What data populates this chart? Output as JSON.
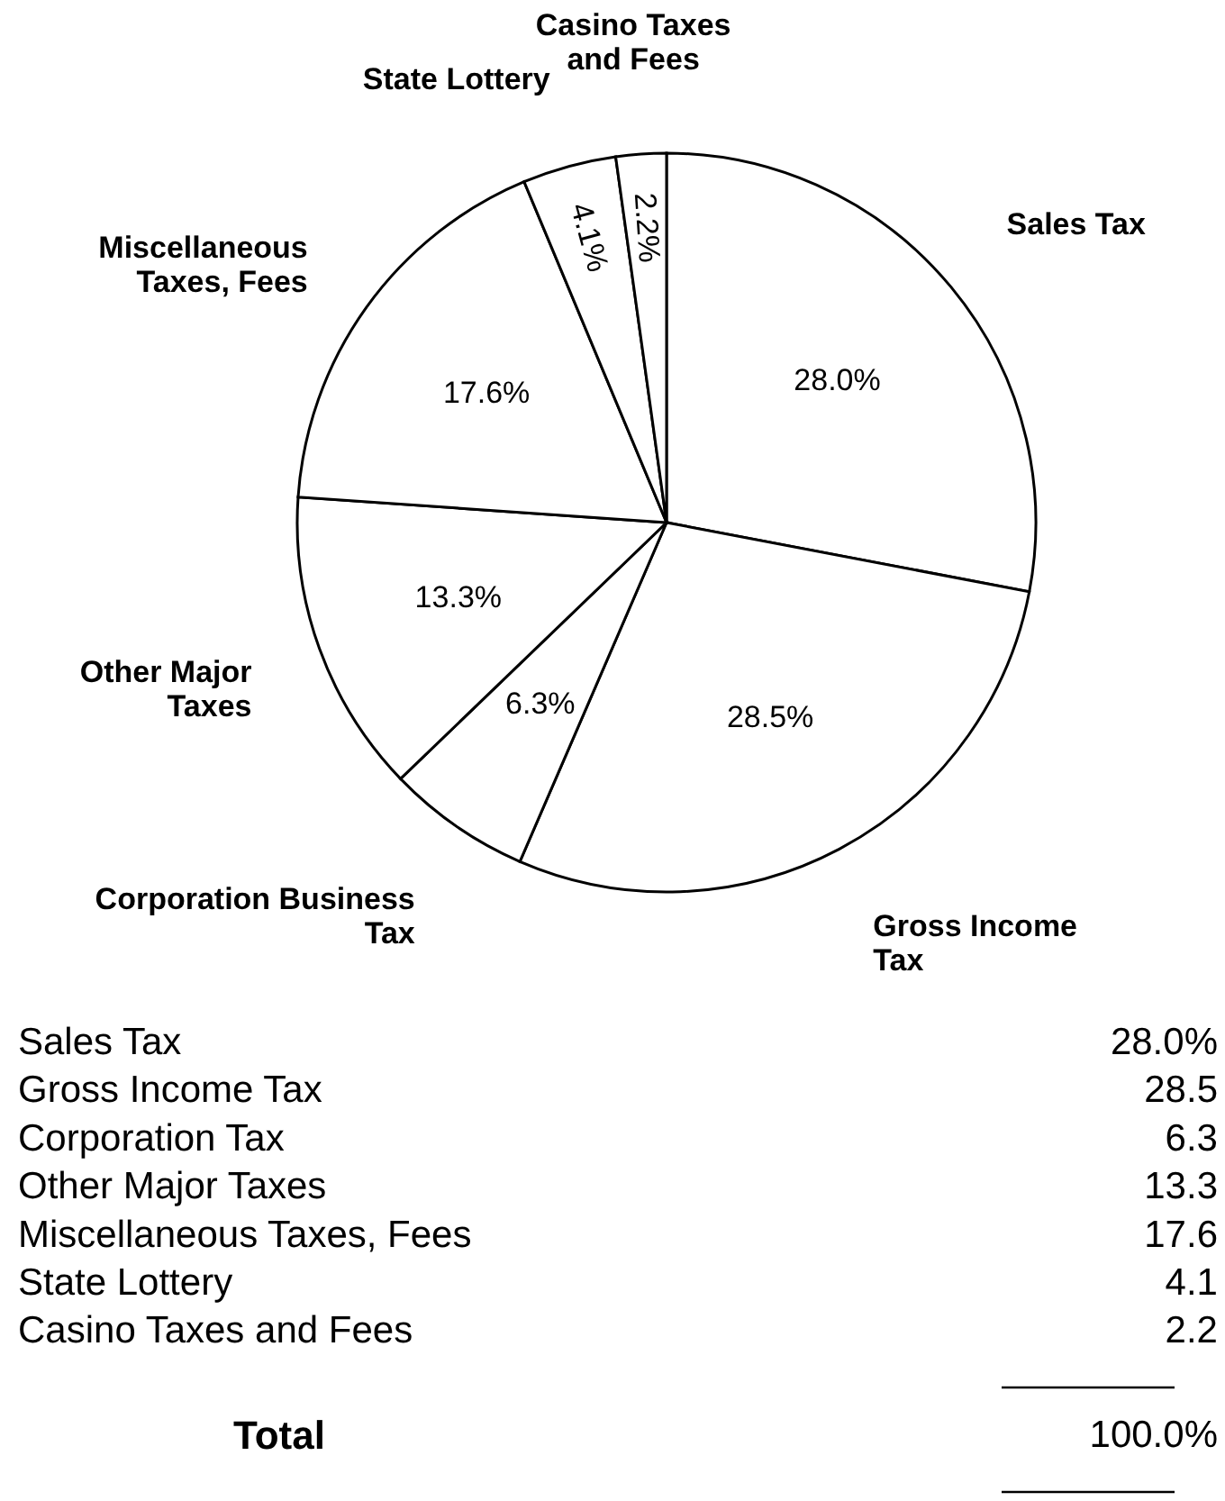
{
  "chart_data": {
    "type": "pie",
    "categories": [
      "Sales Tax",
      "Gross Income\nTax",
      "Corporation Business\nTax",
      "Other Major\nTaxes",
      "Miscellaneous\nTaxes, Fees",
      "State Lottery",
      "Casino Taxes\nand Fees"
    ],
    "values": [
      28.0,
      28.5,
      6.3,
      13.3,
      17.6,
      4.1,
      2.2
    ],
    "colors": [
      "#ffffff",
      "#ffffff",
      "#ffffff",
      "#ffffff",
      "#ffffff",
      "#ffffff",
      "#ffffff"
    ],
    "value_labels": [
      "28.0%",
      "28.5%",
      "6.3%",
      "13.3%",
      "17.6%",
      "4.1%",
      "2.2%"
    ],
    "annotations": [
      "Sales Tax",
      "28.0%",
      "Gross Income Tax",
      "28.5",
      "Corporation Tax",
      "6.3",
      "Other Major Taxes",
      "13.3",
      "Miscellaneous Taxes, Fees",
      "17.6",
      "State Lottery",
      "4.1",
      "Casino Taxes and Fees",
      "2.2",
      "Total",
      "100.0%"
    ]
  }
}
